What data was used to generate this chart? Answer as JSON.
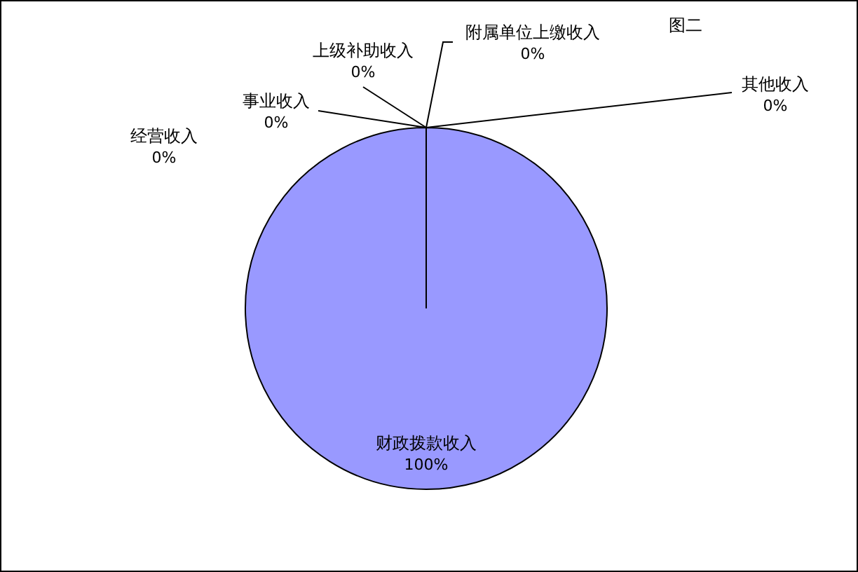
{
  "chart_data": {
    "type": "pie",
    "title": "图二",
    "categories": [
      "财政拨款收入",
      "经营收入",
      "事业收入",
      "上级补助收入",
      "附属单位上缴收入",
      "其他收入"
    ],
    "values": [
      100,
      0,
      0,
      0,
      0,
      0
    ],
    "value_labels": [
      "100%",
      "0%",
      "0%",
      "0%",
      "0%",
      "0%"
    ],
    "colors": [
      "#9999ff",
      "#993366",
      "#ffffcc",
      "#ccffff",
      "#660066",
      "#ff8080"
    ]
  }
}
